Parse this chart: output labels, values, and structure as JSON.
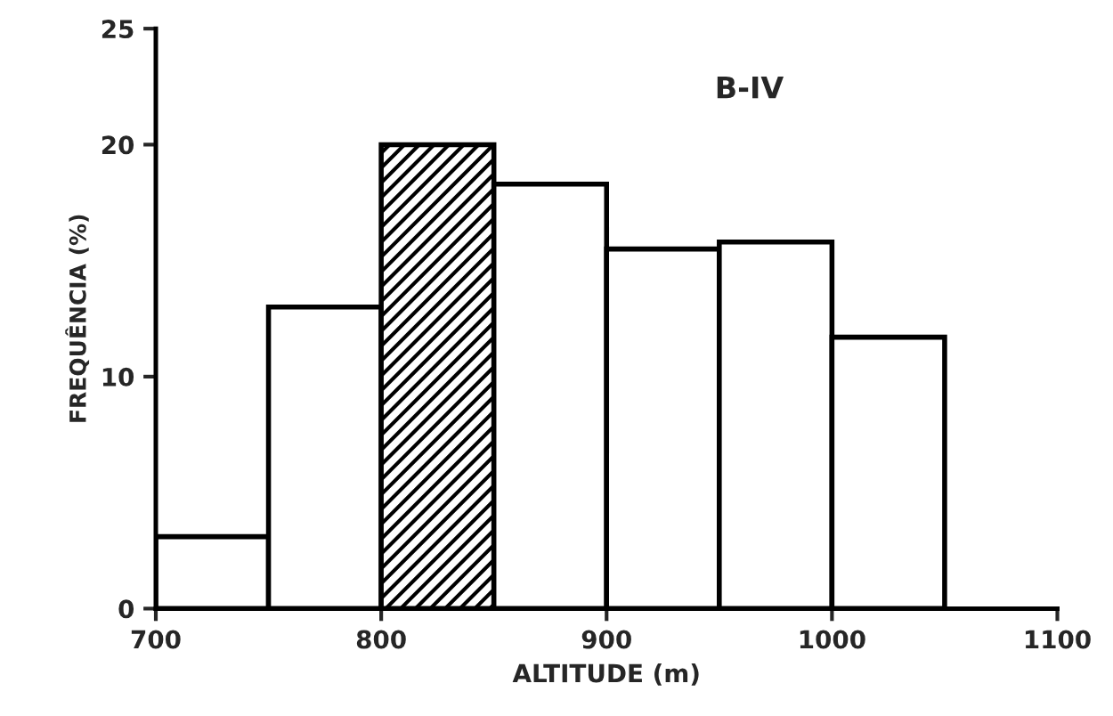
{
  "chart_data": {
    "type": "histogram",
    "xlabel": "ALTITUDE (m)",
    "ylabel": "FREQUÊNCIA (%)",
    "annotations": [
      "B-IV"
    ],
    "bins": [
      700,
      750,
      800,
      850,
      900,
      950,
      1000,
      1050
    ],
    "values": [
      3.1,
      13.0,
      20.0,
      18.3,
      15.5,
      15.8,
      11.7
    ],
    "colors": [
      "#ffffff",
      "#ffffff",
      "#000000",
      "#ffffff",
      "#ffffff",
      "#ffffff",
      "#ffffff"
    ],
    "xlim": [
      700,
      1100
    ],
    "xticks": [
      700,
      800,
      900,
      1000,
      1100
    ],
    "ylim": [
      0,
      25
    ],
    "yticks": [
      0,
      10,
      20,
      25
    ],
    "grid": false,
    "legend": false
  }
}
